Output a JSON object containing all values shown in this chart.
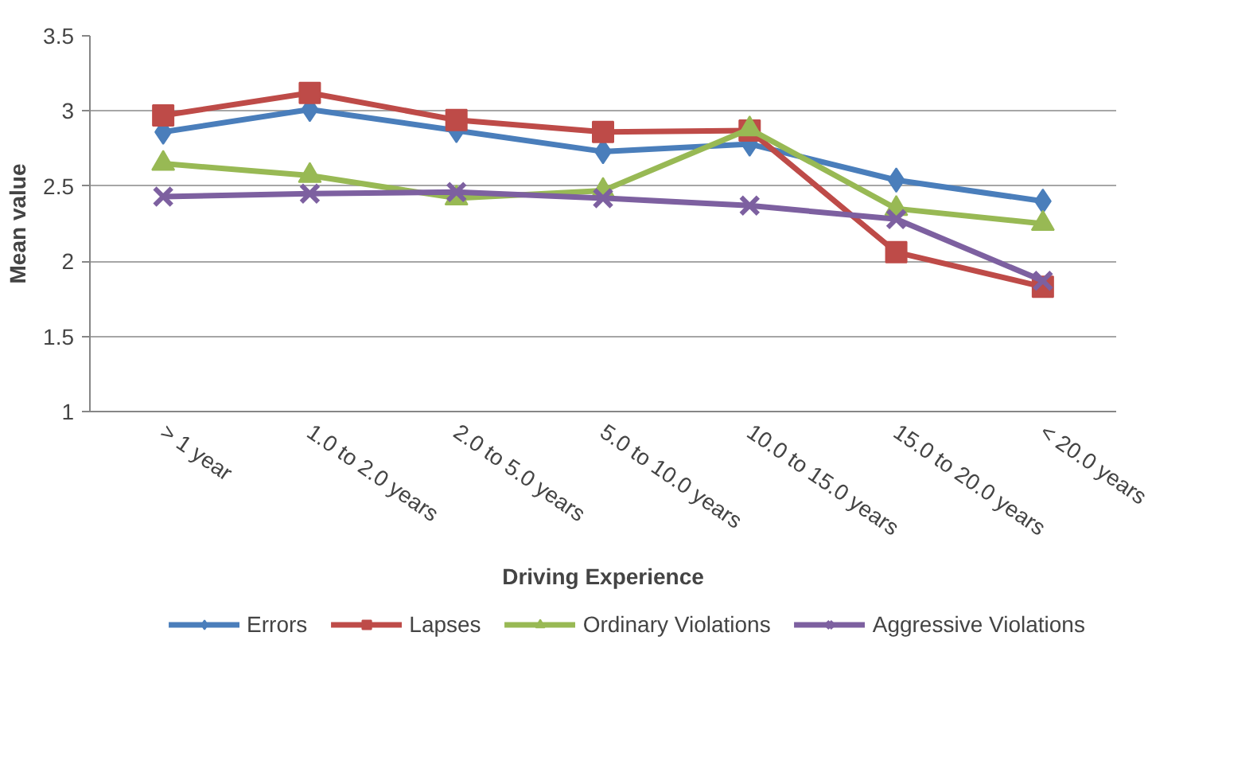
{
  "chart_data": {
    "type": "line",
    "xlabel": "Driving Experience",
    "ylabel": "Mean value",
    "categories": [
      "> 1 year",
      "1.0 to 2.0 years",
      "2.0 to 5.0 years",
      "5.0 to 10.0 years",
      "10.0 to 15.0 years",
      "15.0 to 20.0 years",
      "< 20.0 years"
    ],
    "series": [
      {
        "name": "Errors",
        "color": "#4a7ebb",
        "marker": "diamond",
        "values": [
          2.86,
          3.01,
          2.87,
          2.73,
          2.78,
          2.54,
          2.4
        ]
      },
      {
        "name": "Lapses",
        "color": "#be4b48",
        "marker": "square",
        "values": [
          2.97,
          3.12,
          2.94,
          2.86,
          2.87,
          2.06,
          1.83
        ]
      },
      {
        "name": "Ordinary Violations",
        "color": "#98b954",
        "marker": "triangle",
        "values": [
          2.65,
          2.57,
          2.42,
          2.47,
          2.88,
          2.35,
          2.25
        ]
      },
      {
        "name": "Aggressive Violations",
        "color": "#7d60a0",
        "marker": "cross",
        "values": [
          2.43,
          2.45,
          2.46,
          2.42,
          2.37,
          2.28,
          1.87
        ]
      }
    ],
    "ylim": [
      1,
      3.5
    ],
    "yticks": [
      1,
      1.5,
      2,
      2.5,
      3,
      3.5
    ],
    "grid": "y",
    "legend": "bottom",
    "line_style": "solid"
  }
}
